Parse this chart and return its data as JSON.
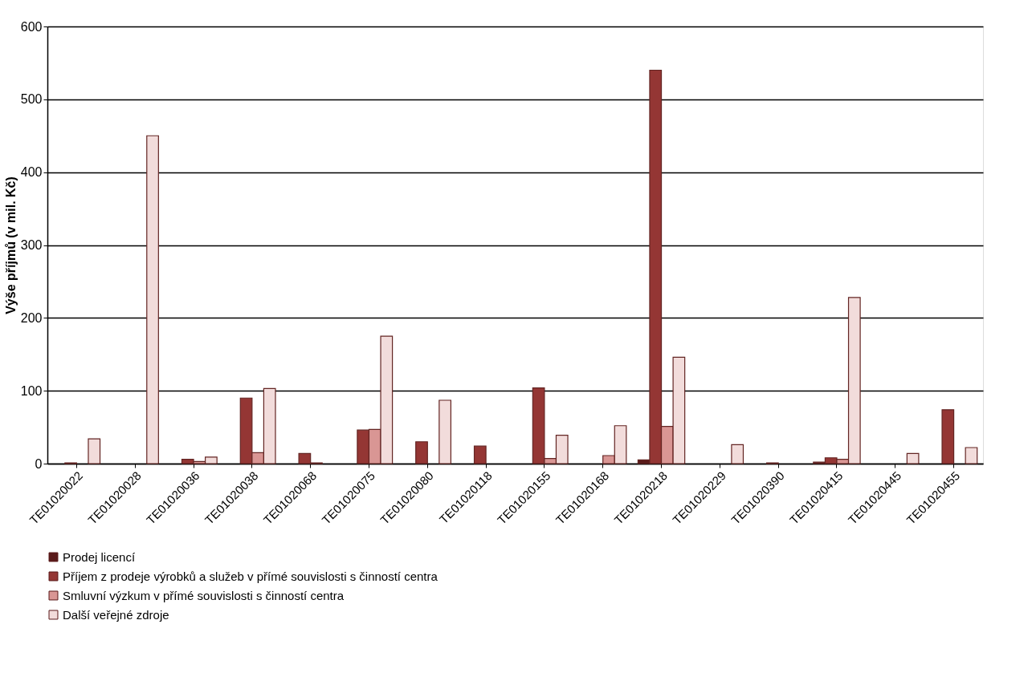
{
  "chart_data": {
    "type": "bar",
    "ylabel": "Výše příjmů (v mil. Kč)",
    "categories": [
      "TE01020022",
      "TE01020028",
      "TE01020036",
      "TE01020038",
      "TE01020068",
      "TE01020075",
      "TE01020080",
      "TE01020118",
      "TE01020155",
      "TE01020168",
      "TE01020218",
      "TE01020229",
      "TE01020390",
      "TE01020415",
      "TE01020445",
      "TE01020455"
    ],
    "series": [
      {
        "name": "Prodej licencí",
        "color": "#5a1a1a",
        "values": [
          null,
          null,
          null,
          null,
          null,
          null,
          null,
          null,
          null,
          null,
          5,
          null,
          null,
          2,
          null,
          null
        ]
      },
      {
        "name": "Příjem z prodeje výrobků a služeb v přímé souvislosti s činností centra",
        "color": "#943634",
        "values": [
          1,
          null,
          6,
          90,
          14,
          46,
          30,
          24,
          104,
          null,
          540,
          null,
          1,
          8,
          null,
          74
        ]
      },
      {
        "name": "Smluvní výzkum v přímé souvislosti s činností centra",
        "color": "#d99694",
        "values": [
          null,
          null,
          3,
          15,
          1,
          47,
          null,
          null,
          7,
          11,
          51,
          null,
          null,
          6,
          null,
          null
        ]
      },
      {
        "name": "Další veřejné zdroje",
        "color": "#f2dcdb",
        "values": [
          34,
          450,
          9,
          103,
          null,
          175,
          87,
          null,
          39,
          52,
          146,
          26,
          null,
          228,
          14,
          22
        ]
      }
    ],
    "ylim": [
      0,
      600
    ],
    "yticks": [
      0,
      100,
      200,
      300,
      400,
      500,
      600
    ],
    "grid": "y",
    "legend": "bottom"
  }
}
